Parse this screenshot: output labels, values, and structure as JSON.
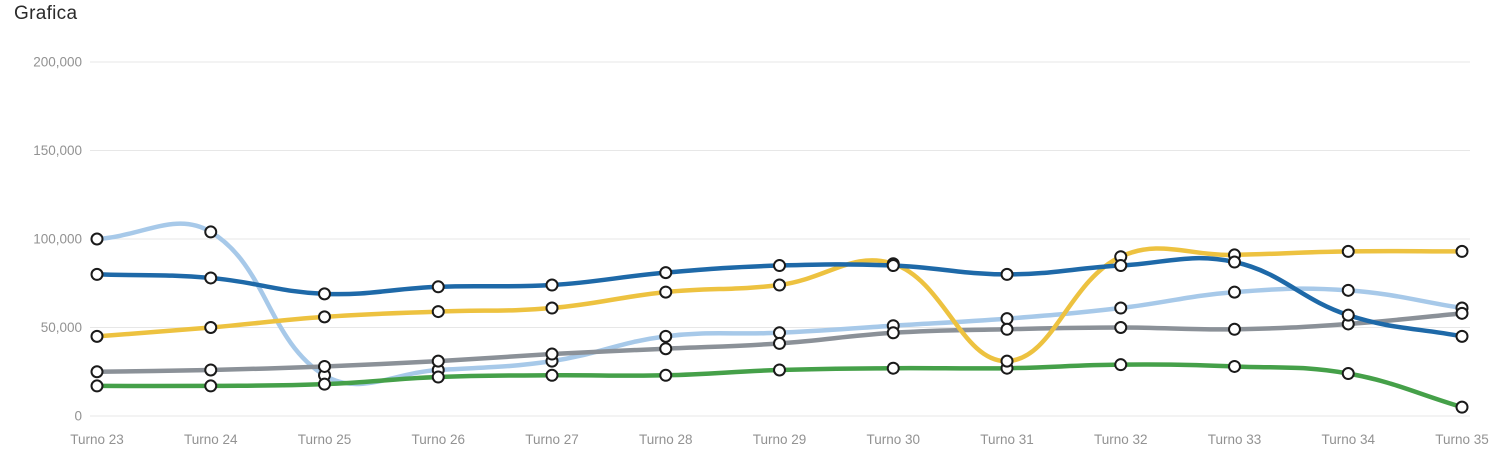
{
  "title": "Grafica",
  "chart_data": {
    "type": "line",
    "title": "Grafica",
    "legend": "none",
    "grid": true,
    "smoothing": "bezier",
    "categories": [
      "Turno 23",
      "Turno 24",
      "Turno 25",
      "Turno 26",
      "Turno 27",
      "Turno 28",
      "Turno 29",
      "Turno 30",
      "Turno 31",
      "Turno 32",
      "Turno 33",
      "Turno 34",
      "Turno 35"
    ],
    "y_axis": {
      "min": 0,
      "max": 200000,
      "tick_step": 50000,
      "tick_values": [
        0,
        50000,
        100000,
        150000,
        200000
      ],
      "tick_labels": [
        "0",
        "50,000",
        "100,000",
        "150,000",
        "200,000"
      ]
    },
    "series": [
      {
        "name": "light-blue-series",
        "color": "#a7c9e9",
        "values": [
          100000,
          104000,
          23000,
          26000,
          31000,
          45000,
          47000,
          51000,
          55000,
          61000,
          70000,
          71000,
          61000
        ]
      },
      {
        "name": "gray-series",
        "color": "#8b9198",
        "values": [
          25000,
          26000,
          28000,
          31000,
          35000,
          38000,
          41000,
          47000,
          49000,
          50000,
          49000,
          52000,
          58000
        ]
      },
      {
        "name": "green-series",
        "color": "#45a049",
        "values": [
          17000,
          17000,
          18000,
          22000,
          23000,
          23000,
          26000,
          27000,
          27000,
          29000,
          28000,
          24000,
          5000
        ]
      },
      {
        "name": "yellow-series",
        "color": "#edc240",
        "values": [
          45000,
          50000,
          56000,
          59000,
          61000,
          70000,
          74000,
          86000,
          31000,
          90000,
          91000,
          93000,
          93000
        ]
      },
      {
        "name": "dark-blue-series",
        "color": "#1e69a8",
        "values": [
          80000,
          78000,
          69000,
          73000,
          74000,
          81000,
          85000,
          85000,
          80000,
          85000,
          87000,
          57000,
          45000
        ]
      }
    ],
    "point_style": {
      "fill": "#ffffff",
      "stroke": "#1a1a1a",
      "radius": 5.5,
      "stroke_width": 2
    },
    "grid_color": "#e7e7e7",
    "axis_label_color": "#929292"
  }
}
